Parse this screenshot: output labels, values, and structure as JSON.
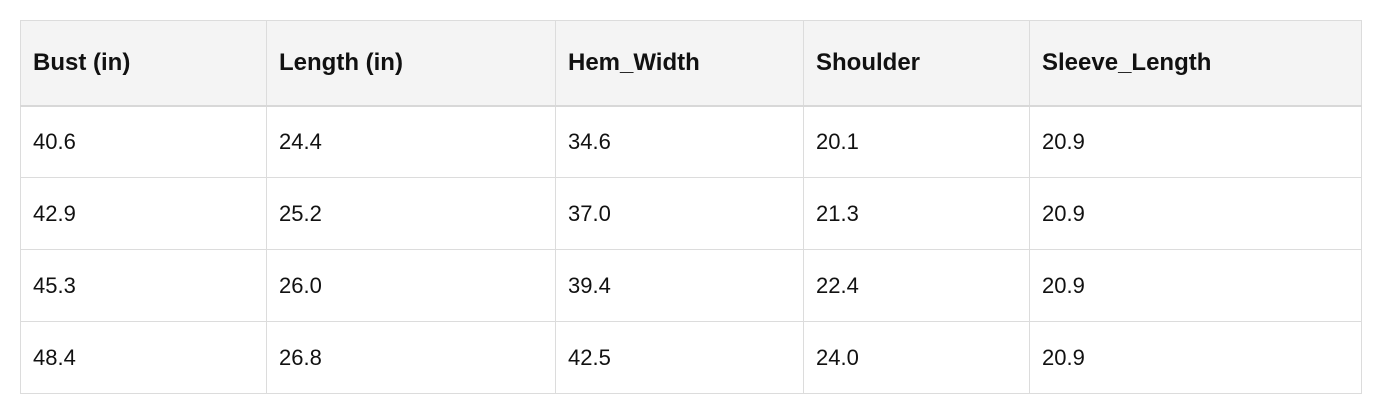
{
  "table": {
    "header": [
      "Bust (in)",
      "Length (in)",
      "Hem_Width",
      "Shoulder",
      "Sleeve_Length"
    ],
    "rows": [
      [
        "40.6",
        "24.4",
        "34.6",
        "20.1",
        "20.9"
      ],
      [
        "42.9",
        "25.2",
        "37.0",
        "21.3",
        "20.9"
      ],
      [
        "45.3",
        "26.0",
        "39.4",
        "22.4",
        "20.9"
      ],
      [
        "48.4",
        "26.8",
        "42.5",
        "24.0",
        "20.9"
      ]
    ]
  }
}
